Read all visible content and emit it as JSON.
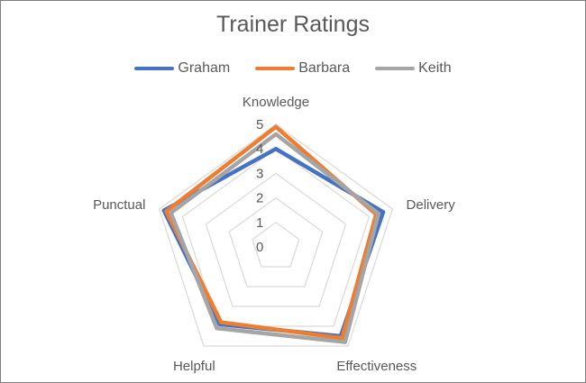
{
  "chart_data": {
    "type": "radar",
    "title": "Trainer Ratings",
    "categories": [
      "Knowledge",
      "Delivery",
      "Effectiveness",
      "Helpful",
      "Punctual"
    ],
    "rmin": 0,
    "rmax": 5,
    "ticks": [
      "0",
      "1",
      "2",
      "3",
      "4",
      "5"
    ],
    "legend_position": "top",
    "grid": true,
    "series": [
      {
        "name": "Graham",
        "color": "#4472c4",
        "values": [
          4.0,
          4.6,
          4.5,
          3.9,
          4.8
        ]
      },
      {
        "name": "Barbara",
        "color": "#ed7d31",
        "values": [
          4.9,
          4.3,
          4.6,
          3.8,
          4.7
        ]
      },
      {
        "name": "Keith",
        "color": "#a5a5a5",
        "values": [
          4.6,
          4.4,
          4.8,
          4.1,
          4.5
        ]
      }
    ]
  }
}
